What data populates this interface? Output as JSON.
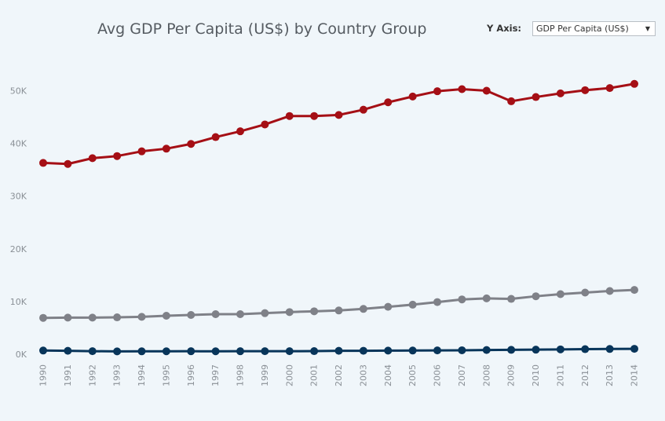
{
  "title": "Avg GDP Per Capita (US$) by Country Group",
  "controls": {
    "yaxis_label": "Y Axis:",
    "yaxis_value": "GDP Per Capita (US$)",
    "dropdown_icon": "triangle-down-icon"
  },
  "chart_data": {
    "type": "line",
    "title": "Avg GDP Per Capita (US$) by Country Group",
    "xlabel": "",
    "ylabel": "",
    "x": [
      "1990",
      "1991",
      "1992",
      "1993",
      "1994",
      "1995",
      "1996",
      "1997",
      "1998",
      "1999",
      "2000",
      "2001",
      "2002",
      "2003",
      "2004",
      "2005",
      "2006",
      "2007",
      "2008",
      "2009",
      "2010",
      "2011",
      "2012",
      "2013",
      "2014"
    ],
    "ylim": [
      0,
      55000
    ],
    "yticks": [
      0,
      10000,
      20000,
      30000,
      40000,
      50000
    ],
    "ytick_labels": [
      "0K",
      "10K",
      "20K",
      "30K",
      "40K",
      "50K"
    ],
    "grid": false,
    "series": [
      {
        "color": "#a50f15",
        "values": [
          36300,
          36100,
          37200,
          37600,
          38500,
          39000,
          39900,
          41200,
          42300,
          43600,
          45200,
          45200,
          45400,
          46400,
          47800,
          48900,
          49900,
          50300,
          50000,
          48000,
          48800,
          49500,
          50100,
          50500,
          51300
        ]
      },
      {
        "color": "#7f8188",
        "values": [
          6900,
          6950,
          6950,
          7000,
          7100,
          7300,
          7450,
          7600,
          7600,
          7800,
          8000,
          8150,
          8300,
          8600,
          9000,
          9400,
          9900,
          10400,
          10600,
          10500,
          11000,
          11400,
          11700,
          12000,
          12200
        ]
      },
      {
        "color": "#08355a",
        "values": [
          700,
          650,
          580,
          540,
          550,
          560,
          570,
          560,
          570,
          580,
          580,
          590,
          650,
          660,
          690,
          700,
          730,
          750,
          800,
          830,
          870,
          920,
          960,
          1000,
          1030
        ]
      }
    ]
  }
}
